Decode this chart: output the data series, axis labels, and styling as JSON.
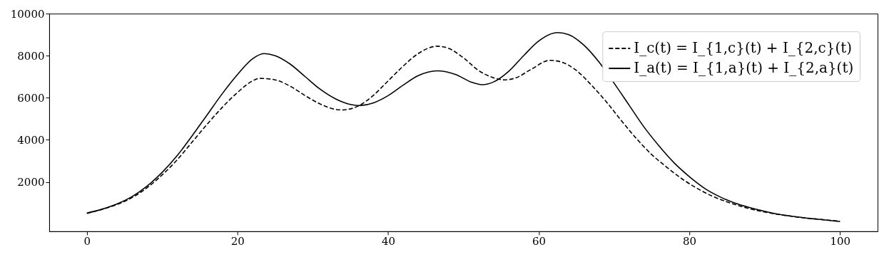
{
  "chart_data": {
    "type": "line",
    "xlim": [
      -5,
      105
    ],
    "xticks": [
      0,
      20,
      40,
      60,
      80,
      100
    ],
    "ylim": [
      -350,
      10000
    ],
    "yticks": [
      2000,
      4000,
      6000,
      8000,
      10000
    ],
    "grid": false,
    "legend": "top right",
    "marker": "none",
    "series": [
      {
        "name": "I_c(t) = I_{1,c}(t) + I_{2,c}(t)",
        "color": "#000000",
        "line_style": "dashed",
        "x": [
          0,
          2,
          4,
          6,
          8,
          10,
          12,
          14,
          16,
          18,
          20,
          22,
          23,
          25,
          27,
          29,
          31,
          33,
          34,
          36,
          38,
          40,
          42,
          44,
          46.5,
          48,
          50,
          52,
          54,
          55.5,
          57,
          59,
          61.5,
          63,
          65,
          67,
          69,
          71,
          73,
          75,
          77,
          79,
          81,
          83,
          85,
          87,
          89,
          91,
          93,
          95,
          97,
          100
        ],
        "values": [
          500,
          690,
          920,
          1250,
          1720,
          2330,
          3050,
          3900,
          4750,
          5550,
          6250,
          6800,
          6920,
          6850,
          6550,
          6100,
          5700,
          5450,
          5420,
          5600,
          6100,
          6800,
          7500,
          8100,
          8450,
          8350,
          7900,
          7300,
          6950,
          6850,
          6950,
          7350,
          7780,
          7700,
          7300,
          6600,
          5800,
          4900,
          4050,
          3300,
          2700,
          2150,
          1700,
          1330,
          1050,
          820,
          640,
          500,
          390,
          300,
          230,
          130
        ]
      },
      {
        "name": "I_a(t) = I_{1,a}(t) + I_{2,a}(t)",
        "color": "#000000",
        "line_style": "solid",
        "x": [
          0,
          2,
          4,
          6,
          8,
          10,
          12,
          14,
          16,
          18,
          20,
          22,
          23.5,
          25,
          27,
          29,
          31,
          33,
          35,
          36,
          38,
          40,
          42,
          44,
          46.5,
          49,
          51,
          52.5,
          54,
          56,
          58,
          60,
          62.5,
          64,
          66,
          68,
          70,
          72,
          74,
          76,
          78,
          80,
          82,
          84,
          86,
          88,
          90,
          92,
          94,
          96,
          98,
          100
        ],
        "values": [
          515,
          700,
          950,
          1300,
          1800,
          2450,
          3250,
          4200,
          5200,
          6200,
          7100,
          7850,
          8100,
          8000,
          7600,
          7000,
          6400,
          5950,
          5680,
          5630,
          5750,
          6100,
          6600,
          7050,
          7280,
          7100,
          6750,
          6620,
          6750,
          7250,
          8000,
          8700,
          9100,
          9000,
          8500,
          7700,
          6700,
          5650,
          4600,
          3700,
          2900,
          2250,
          1700,
          1300,
          1000,
          780,
          600,
          450,
          350,
          260,
          190,
          110
        ]
      }
    ]
  }
}
